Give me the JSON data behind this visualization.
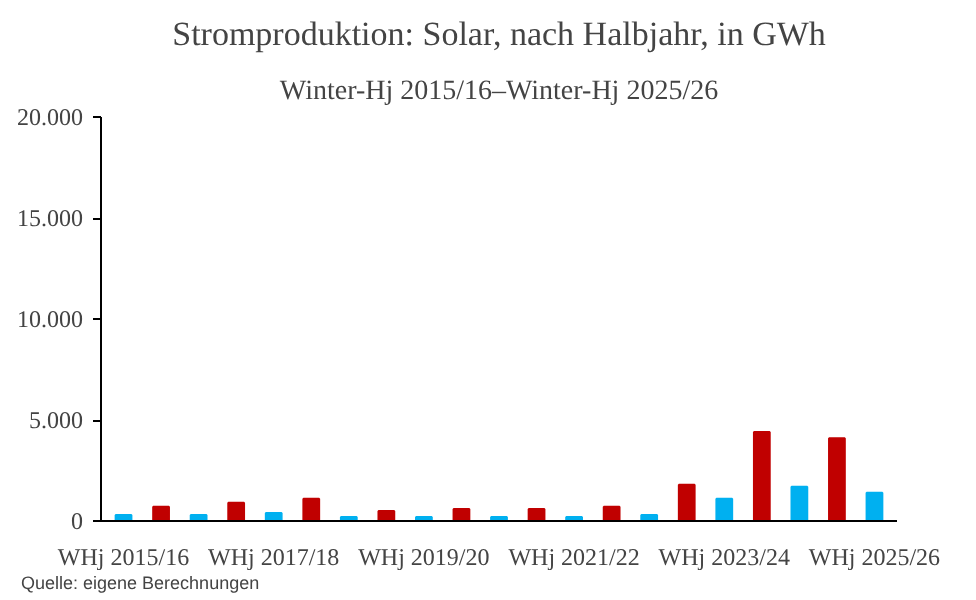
{
  "chart_data": {
    "type": "bar",
    "title": "Stromproduktion: Solar, nach Halbjahr, in GWh",
    "subtitle": "Winter-Hj 2015/16–Winter-Hj 2025/26",
    "categories": [
      "WHj 2015/16",
      null,
      null,
      null,
      "WHj 2017/18",
      null,
      null,
      null,
      "WHj 2019/20",
      null,
      null,
      null,
      "WHj 2021/22",
      null,
      null,
      null,
      "WHj 2023/24",
      null,
      null,
      null,
      "WHj 2025/26"
    ],
    "values": [
      300,
      700,
      300,
      900,
      400,
      1100,
      200,
      500,
      200,
      600,
      200,
      600,
      200,
      700,
      300,
      1800,
      1100,
      4400,
      1700,
      4100,
      1400
    ],
    "colors": [
      "#00b0f0",
      "#c00000",
      "#00b0f0",
      "#c00000",
      "#00b0f0",
      "#c00000",
      "#00b0f0",
      "#c00000",
      "#00b0f0",
      "#c00000",
      "#00b0f0",
      "#c00000",
      "#00b0f0",
      "#c00000",
      "#00b0f0",
      "#c00000",
      "#00b0f0",
      "#c00000",
      "#00b0f0",
      "#c00000",
      "#00b0f0"
    ],
    "ylim": [
      0,
      20000
    ],
    "yticks": [
      0,
      {
        "value": 5000,
        "label": "5.000"
      },
      {
        "value": 10000,
        "label": "10.000"
      },
      {
        "value": 15000,
        "label": "15.000"
      },
      {
        "value": 20000,
        "label": "20.000"
      }
    ],
    "grid": false,
    "annotations": [
      "Quelle: eigene Berechnungen"
    ]
  }
}
